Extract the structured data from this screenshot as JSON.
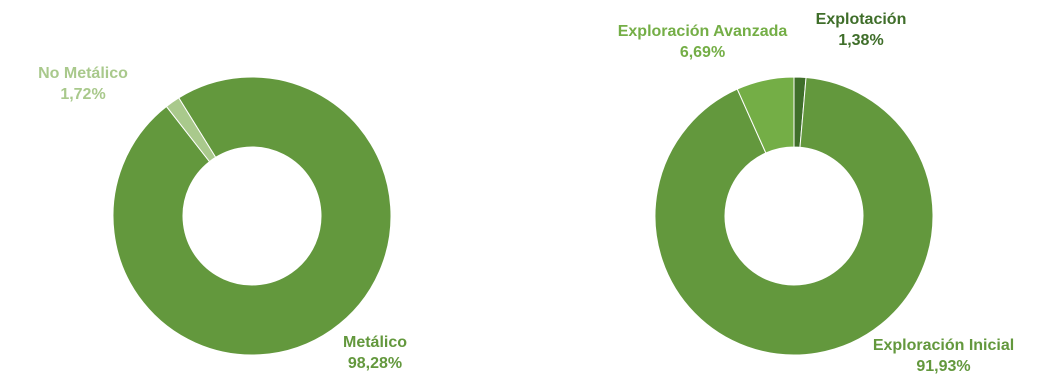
{
  "colors": {
    "metalico": "#63983D",
    "no_metalico": "#A9C98C",
    "exploracion_inicial": "#63983D",
    "exploracion_avanzada": "#74AE46",
    "explotacion": "#3F6E2A",
    "label_no_metalico": "#A9C98C",
    "label_metalico": "#63983D",
    "label_explotacion": "#3F6E2A",
    "label_avanzada": "#74AE46",
    "label_inicial": "#63983D"
  },
  "chart_data": [
    {
      "type": "pie",
      "donut": true,
      "slices": [
        {
          "name": "Metálico",
          "percent_label": "98,28%",
          "value": 98.28
        },
        {
          "name": "No Metálico",
          "percent_label": "1,72%",
          "value": 1.72
        }
      ]
    },
    {
      "type": "pie",
      "donut": true,
      "slices": [
        {
          "name": "Explotación",
          "percent_label": "1,38%",
          "value": 1.38
        },
        {
          "name": "Exploración Inicial",
          "percent_label": "91,93%",
          "value": 91.93
        },
        {
          "name": "Exploración Avanzada",
          "percent_label": "6,69%",
          "value": 6.69
        }
      ]
    }
  ]
}
